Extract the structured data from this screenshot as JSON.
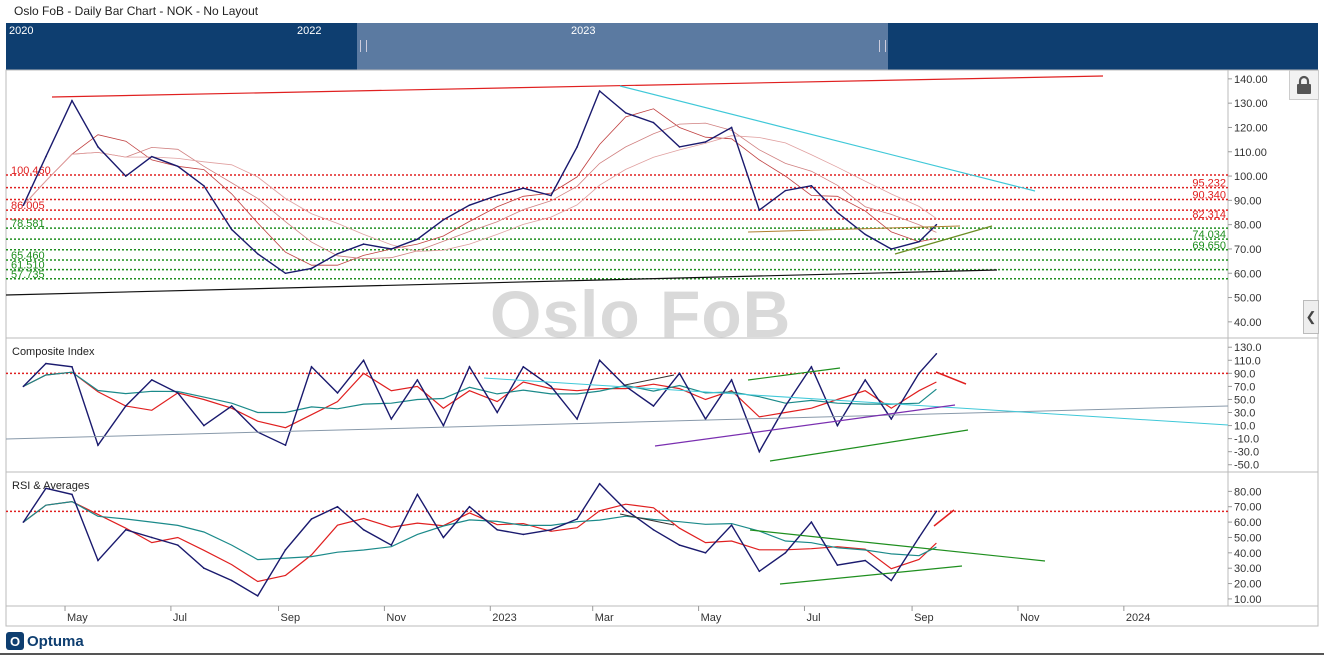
{
  "header": {
    "title": "Oslo FoB - Daily Bar Chart - NOK - No Layout"
  },
  "navigator": {
    "years": [
      "2020",
      "2022",
      "2023"
    ]
  },
  "watermark": "Oslo FoB",
  "logo": "Optuma",
  "colors": {
    "price": "#1a1a6e",
    "red": "#e02020",
    "green": "#1f8f1f",
    "cyan": "#3fc8d8",
    "teal": "#1b8a8a",
    "purple": "#7a2fb0",
    "nav": "#0e3e70"
  },
  "icons": {
    "lock": "lock-icon",
    "collapse": "chevron-left-icon"
  },
  "chart_data": [
    {
      "type": "line",
      "name": "price",
      "ylim": [
        35,
        142
      ],
      "yticks": [
        "140.00",
        "130.00",
        "120.00",
        "110.00",
        "100.00",
        "90.00",
        "80.00",
        "70.00",
        "60.00",
        "50.00",
        "40.00"
      ],
      "xticks": [
        "May",
        "Jul",
        "Sep",
        "Nov",
        "2023",
        "Mar",
        "May",
        "Jul",
        "Sep",
        "Nov",
        "2024"
      ],
      "x": [
        "2022-04-07",
        "2022-04-20",
        "2022-05-05",
        "2022-05-20",
        "2022-06-05",
        "2022-06-20",
        "2022-07-05",
        "2022-07-20",
        "2022-08-05",
        "2022-08-20",
        "2022-09-05",
        "2022-09-20",
        "2022-10-05",
        "2022-10-20",
        "2022-11-05",
        "2022-11-20",
        "2022-12-05",
        "2022-12-20",
        "2023-01-05",
        "2023-01-20",
        "2023-02-05",
        "2023-02-20",
        "2023-03-05",
        "2023-03-20",
        "2023-04-05",
        "2023-04-20",
        "2023-05-05",
        "2023-05-20",
        "2023-06-05",
        "2023-06-20",
        "2023-07-05",
        "2023-07-20",
        "2023-08-05",
        "2023-08-20",
        "2023-09-05",
        "2023-09-15"
      ],
      "values": [
        88,
        108,
        131,
        112,
        100,
        108,
        104,
        96,
        78,
        68,
        60,
        62,
        68,
        72,
        70,
        74,
        82,
        88,
        92,
        95,
        92,
        112,
        135,
        126,
        122,
        112,
        114,
        120,
        86,
        94,
        96,
        85,
        76,
        70,
        73,
        80
      ],
      "levels_red": [
        {
          "label": "100.460",
          "value": 100.46
        },
        {
          "label": "95.232",
          "value": 95.232
        },
        {
          "label": "90.340",
          "value": 90.34
        },
        {
          "label": "86.005",
          "value": 86.005
        },
        {
          "label": "82.314",
          "value": 82.314
        }
      ],
      "levels_green": [
        {
          "label": "78.581",
          "value": 78.581
        },
        {
          "label": "74.034",
          "value": 74.034
        },
        {
          "label": "69.650",
          "value": 69.65
        },
        {
          "label": "65.460",
          "value": 65.46
        },
        {
          "label": "61.510",
          "value": 61.51
        },
        {
          "label": "57.735",
          "value": 57.735
        }
      ]
    },
    {
      "type": "line",
      "name": "composite-index",
      "title": "Composite Index",
      "ylim": [
        -55,
        138
      ],
      "yticks": [
        "130.0",
        "110.0",
        "90.0",
        "70.0",
        "50.0",
        "30.0",
        "10.0",
        "-10.0",
        "-30.0",
        "-50.0"
      ],
      "x": [
        "2022-04-07",
        "2022-04-20",
        "2022-05-05",
        "2022-05-20",
        "2022-06-05",
        "2022-06-20",
        "2022-07-05",
        "2022-07-20",
        "2022-08-05",
        "2022-08-20",
        "2022-09-05",
        "2022-09-20",
        "2022-10-05",
        "2022-10-20",
        "2022-11-05",
        "2022-11-20",
        "2022-12-05",
        "2022-12-20",
        "2023-01-05",
        "2023-01-20",
        "2023-02-05",
        "2023-02-20",
        "2023-03-05",
        "2023-03-20",
        "2023-04-05",
        "2023-04-20",
        "2023-05-05",
        "2023-05-20",
        "2023-06-05",
        "2023-06-20",
        "2023-07-05",
        "2023-07-20",
        "2023-08-05",
        "2023-08-20",
        "2023-09-05",
        "2023-09-15"
      ],
      "values": [
        70,
        105,
        100,
        -20,
        40,
        80,
        60,
        10,
        40,
        0,
        -20,
        100,
        60,
        110,
        20,
        80,
        10,
        100,
        30,
        100,
        70,
        20,
        110,
        70,
        40,
        90,
        20,
        80,
        -30,
        40,
        100,
        10,
        80,
        20,
        90,
        120
      ],
      "reference_level": 90
    },
    {
      "type": "line",
      "name": "rsi",
      "title": "RSI & Averages",
      "ylim": [
        8,
        90
      ],
      "yticks": [
        "80.00",
        "70.00",
        "60.00",
        "50.00",
        "40.00",
        "30.00",
        "20.00",
        "10.00"
      ],
      "x": [
        "2022-04-07",
        "2022-04-20",
        "2022-05-05",
        "2022-05-20",
        "2022-06-05",
        "2022-06-20",
        "2022-07-05",
        "2022-07-20",
        "2022-08-05",
        "2022-08-20",
        "2022-09-05",
        "2022-09-20",
        "2022-10-05",
        "2022-10-20",
        "2022-11-05",
        "2022-11-20",
        "2022-12-05",
        "2022-12-20",
        "2023-01-05",
        "2023-01-20",
        "2023-02-05",
        "2023-02-20",
        "2023-03-05",
        "2023-03-20",
        "2023-04-05",
        "2023-04-20",
        "2023-05-05",
        "2023-05-20",
        "2023-06-05",
        "2023-06-20",
        "2023-07-05",
        "2023-07-20",
        "2023-08-05",
        "2023-08-20",
        "2023-09-05",
        "2023-09-15"
      ],
      "values": [
        60,
        82,
        78,
        35,
        55,
        50,
        45,
        30,
        22,
        12,
        42,
        62,
        70,
        55,
        45,
        78,
        50,
        70,
        55,
        52,
        55,
        62,
        85,
        68,
        55,
        45,
        40,
        58,
        28,
        40,
        60,
        32,
        35,
        22,
        50,
        67
      ],
      "reference_level": 67
    }
  ]
}
